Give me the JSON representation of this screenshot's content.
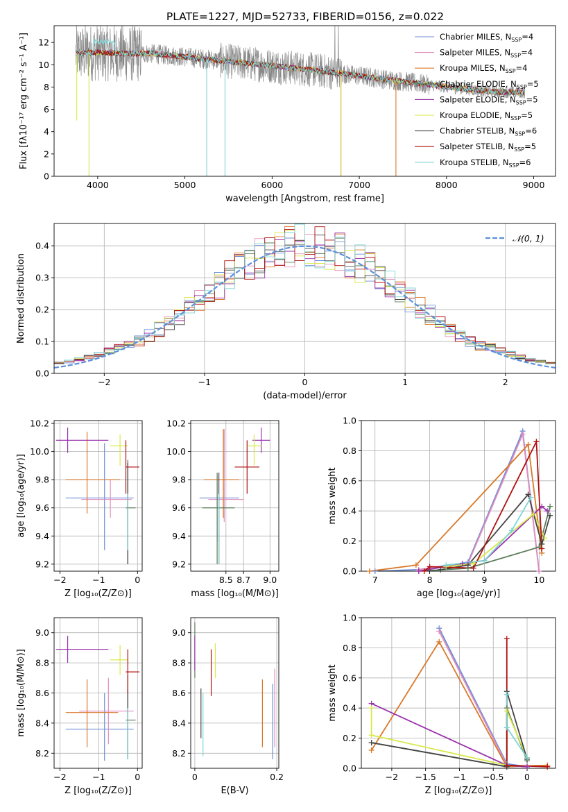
{
  "figure": {
    "title": "PLATE=1227, MJD=52733, FIBERID=0156, z=0.022"
  },
  "series_styles": [
    {
      "name": "Chabrier MILES",
      "nssp": "4",
      "color": "#6e8fd6"
    },
    {
      "name": "Salpeter MILES",
      "nssp": "4",
      "color": "#e38cbc"
    },
    {
      "name": "Kroupa MILES",
      "nssp": "4",
      "color": "#d9782a"
    },
    {
      "name": "Chabrier ELODIE",
      "nssp": "5",
      "color": "#5b7d5b"
    },
    {
      "name": "Salpeter ELODIE",
      "nssp": "5",
      "color": "#9933aa"
    },
    {
      "name": "Kroupa ELODIE",
      "nssp": "5",
      "color": "#d8e84a"
    },
    {
      "name": "Chabrier STELIB",
      "nssp": "6",
      "color": "#444444"
    },
    {
      "name": "Salpeter STELIB",
      "nssp": "5",
      "color": "#b01010"
    },
    {
      "name": "Kroupa STELIB",
      "nssp": "6",
      "color": "#7fd4d4"
    }
  ],
  "legend_nssp_label": "N",
  "legend_nssp_sub": "SSP",
  "chart_data": [
    {
      "id": "spectrum",
      "type": "line",
      "xlabel": "wavelength [Angstrom, rest frame]",
      "ylabel": "Flux [fλ10⁻¹⁷ erg cm⁻² s⁻¹ A⁻¹]",
      "xlim": [
        3500,
        9250
      ],
      "ylim": [
        0,
        13.5
      ],
      "xticks": [
        4000,
        5000,
        6000,
        7000,
        8000,
        9000
      ],
      "yticks": [
        0,
        2,
        4,
        6,
        8,
        10,
        12
      ],
      "legend": "top-right",
      "data_range": [
        3750,
        8900
      ],
      "data_color": "#888888",
      "continuum": [
        [
          3750,
          11.0
        ],
        [
          4000,
          11.1
        ],
        [
          4300,
          11.0
        ],
        [
          4600,
          11.0
        ],
        [
          5000,
          10.7
        ],
        [
          5500,
          10.3
        ],
        [
          6000,
          9.9
        ],
        [
          6500,
          9.5
        ],
        [
          7000,
          9.0
        ],
        [
          7500,
          8.5
        ],
        [
          8000,
          8.0
        ],
        [
          8500,
          7.6
        ],
        [
          8900,
          7.5
        ]
      ],
      "dips": [
        {
          "x": 3760,
          "y": 5.0
        },
        {
          "x": 3900,
          "y": 0.0
        },
        {
          "x": 5250,
          "y": 0.0
        },
        {
          "x": 5460,
          "y": 0.0
        },
        {
          "x": 6790,
          "y": 0.0
        },
        {
          "x": 7420,
          "y": 0.0
        }
      ]
    },
    {
      "id": "residuals",
      "type": "histogram",
      "xlabel": "(data-model)/error",
      "ylabel": "Normed distribution",
      "xlim": [
        -2.5,
        2.5
      ],
      "ylim": [
        0,
        0.47
      ],
      "xticks": [
        -2,
        -1,
        0,
        1,
        2
      ],
      "yticks": [
        0.0,
        0.1,
        0.2,
        0.3,
        0.4
      ],
      "grid": true,
      "legend": "top-right",
      "reference_curve": {
        "name": "𝒩(0, 1)",
        "mean": 0,
        "sigma": 1,
        "color": "#5b8fdc"
      },
      "bin_width": 0.1
    },
    {
      "id": "age_vs_Z",
      "type": "scatter",
      "xlabel": "Z [log₁₀(Z/Z⊙)]",
      "ylabel": "age  [log₁₀(age/yr)]",
      "xlim": [
        -2.15,
        0.12
      ],
      "ylim": [
        9.15,
        10.22
      ],
      "xticks": [
        -2,
        -1,
        0
      ],
      "yticks": [
        9.2,
        9.4,
        9.6,
        9.8,
        10.0,
        10.2
      ],
      "grid": true,
      "points": [
        {
          "s": 0,
          "x": -0.85,
          "y": 9.67,
          "xlo": -1.85,
          "xhi": -0.1,
          "ylo": 9.3,
          "yhi": 10.06
        },
        {
          "s": 1,
          "x": -0.7,
          "y": 9.66,
          "xlo": -1.45,
          "xhi": -0.15,
          "ylo": 9.53,
          "yhi": 9.8
        },
        {
          "s": 2,
          "x": -1.3,
          "y": 9.8,
          "xlo": -1.85,
          "xhi": -0.45,
          "ylo": 9.56,
          "yhi": 10.14
        },
        {
          "s": 3,
          "x": -0.25,
          "y": 9.6,
          "xlo": -0.3,
          "xhi": -0.05,
          "ylo": 9.2,
          "yhi": 9.94
        },
        {
          "s": 4,
          "x": -1.8,
          "y": 10.08,
          "xlo": -2.1,
          "xhi": -0.75,
          "ylo": 9.99,
          "yhi": 10.17
        },
        {
          "s": 5,
          "x": -0.45,
          "y": 10.04,
          "xlo": -0.7,
          "xhi": -0.25,
          "ylo": 9.9,
          "yhi": 10.12
        },
        {
          "s": 6,
          "x": -0.25,
          "y": 9.59,
          "xlo": -0.25,
          "xhi": -0.25,
          "ylo": 9.2,
          "yhi": 9.92
        },
        {
          "s": 7,
          "x": -0.3,
          "y": 9.89,
          "xlo": -0.3,
          "xhi": 0.05,
          "ylo": 9.7,
          "yhi": 10.08
        },
        {
          "s": 8,
          "x": -0.25,
          "y": 9.6,
          "xlo": -0.25,
          "xhi": -0.25,
          "ylo": 9.3,
          "yhi": 9.7
        }
      ]
    },
    {
      "id": "age_vs_mass",
      "type": "scatter",
      "xlabel": "mass [log₁₀(M/M⊙)]",
      "ylabel": "",
      "xlim": [
        8.1,
        9.1
      ],
      "ylim": [
        9.15,
        10.22
      ],
      "xticks": [
        8.5,
        8.7,
        9.0
      ],
      "xtick_labels": [
        "8.5",
        "8.7",
        "9.0"
      ],
      "yticks": [
        9.2,
        9.4,
        9.6,
        9.8,
        10.0,
        10.2
      ],
      "grid": true,
      "points": [
        {
          "s": 0,
          "x": 8.4,
          "y": 9.67,
          "xlo": 8.2,
          "xhi": 8.65,
          "ylo": 9.36,
          "yhi": 9.83
        },
        {
          "s": 1,
          "x": 8.48,
          "y": 9.66,
          "xlo": 8.3,
          "xhi": 8.7,
          "ylo": 9.5,
          "yhi": 10.16
        },
        {
          "s": 2,
          "x": 8.47,
          "y": 9.8,
          "xlo": 8.25,
          "xhi": 8.65,
          "ylo": 9.53,
          "yhi": 10.16
        },
        {
          "s": 3,
          "x": 8.4,
          "y": 9.6,
          "xlo": 8.23,
          "xhi": 8.6,
          "ylo": 9.2,
          "yhi": 9.85
        },
        {
          "s": 4,
          "x": 8.9,
          "y": 10.08,
          "xlo": 8.8,
          "xhi": 9.0,
          "ylo": 9.99,
          "yhi": 10.17
        },
        {
          "s": 5,
          "x": 8.82,
          "y": 10.04,
          "xlo": 8.75,
          "xhi": 8.9,
          "ylo": 9.9,
          "yhi": 10.12
        },
        {
          "s": 6,
          "x": 8.42,
          "y": 9.59,
          "xlo": 8.42,
          "xhi": 8.42,
          "ylo": 9.2,
          "yhi": 9.85
        },
        {
          "s": 7,
          "x": 8.74,
          "y": 9.89,
          "xlo": 8.6,
          "xhi": 8.88,
          "ylo": 9.7,
          "yhi": 10.08
        },
        {
          "s": 8,
          "x": 8.42,
          "y": 9.6,
          "xlo": 8.42,
          "xhi": 8.42,
          "ylo": 9.2,
          "yhi": 9.7
        }
      ]
    },
    {
      "id": "mass_weight_vs_age",
      "type": "line",
      "xlabel": "age  [log₁₀(age/yr)]",
      "ylabel": "mass weight",
      "xlim": [
        6.75,
        10.3
      ],
      "ylim": [
        0,
        1
      ],
      "xticks": [
        7,
        8,
        9,
        10
      ],
      "yticks": [
        0.0,
        0.2,
        0.4,
        0.6,
        0.8,
        1.0
      ],
      "grid": true,
      "series": [
        {
          "s": 0,
          "x": [
            7.0,
            7.8,
            8.7,
            9.7,
            10.0
          ],
          "y": [
            0.0,
            0.01,
            0.06,
            0.93,
            0.0
          ]
        },
        {
          "s": 1,
          "x": [
            7.8,
            8.7,
            9.7,
            10.0
          ],
          "y": [
            0.01,
            0.05,
            0.91,
            0.0
          ]
        },
        {
          "s": 2,
          "x": [
            6.9,
            7.75,
            9.8,
            10.05
          ],
          "y": [
            0.0,
            0.04,
            0.84,
            0.12
          ]
        },
        {
          "s": 3,
          "x": [
            7.8,
            8.7,
            10.0,
            10.2
          ],
          "y": [
            0.0,
            0.02,
            0.16,
            0.43
          ]
        },
        {
          "s": 4,
          "x": [
            7.8,
            8.6,
            9.0,
            10.05,
            10.15
          ],
          "y": [
            0.0,
            0.05,
            0.07,
            0.43,
            0.4
          ]
        },
        {
          "s": 5,
          "x": [
            8.3,
            8.8,
            9.9,
            10.1
          ],
          "y": [
            0.03,
            0.05,
            0.38,
            0.22
          ]
        },
        {
          "s": 6,
          "x": [
            8.2,
            8.7,
            9.8,
            10.05,
            10.2
          ],
          "y": [
            0.01,
            0.04,
            0.51,
            0.18,
            0.37
          ]
        },
        {
          "s": 7,
          "x": [
            7.9,
            8.0,
            8.8,
            9.95,
            10.05
          ],
          "y": [
            0.0,
            0.03,
            0.02,
            0.86,
            0.15
          ]
        },
        {
          "s": 8,
          "x": [
            8.3,
            9.0,
            9.5,
            9.85
          ],
          "y": [
            0.04,
            0.07,
            0.27,
            0.49
          ]
        }
      ]
    },
    {
      "id": "mass_vs_Z",
      "type": "scatter",
      "xlabel": "Z [log₁₀(Z/Z⊙)]",
      "ylabel": "mass [log₁₀(M/M⊙)]",
      "xlim": [
        -2.15,
        0.12
      ],
      "ylim": [
        8.1,
        9.1
      ],
      "xticks": [
        -2,
        -1,
        0
      ],
      "yticks": [
        8.2,
        8.4,
        8.6,
        8.8,
        9.0
      ],
      "grid": true,
      "points": [
        {
          "s": 0,
          "x": -0.85,
          "y": 8.36,
          "xlo": -1.85,
          "xhi": -0.1,
          "ylo": 8.15,
          "yhi": 8.6
        },
        {
          "s": 1,
          "x": -0.75,
          "y": 8.48,
          "xlo": -1.5,
          "xhi": -0.1,
          "ylo": 8.26,
          "yhi": 8.7
        },
        {
          "s": 2,
          "x": -1.3,
          "y": 8.47,
          "xlo": -1.85,
          "xhi": -0.5,
          "ylo": 8.24,
          "yhi": 8.69
        },
        {
          "s": 3,
          "x": -0.25,
          "y": 8.42,
          "xlo": -0.3,
          "xhi": -0.05,
          "ylo": 8.16,
          "yhi": 8.72
        },
        {
          "s": 4,
          "x": -1.8,
          "y": 8.89,
          "xlo": -2.1,
          "xhi": -0.75,
          "ylo": 8.8,
          "yhi": 8.98
        },
        {
          "s": 5,
          "x": -0.45,
          "y": 8.82,
          "xlo": -0.7,
          "xhi": -0.25,
          "ylo": 8.72,
          "yhi": 8.92
        },
        {
          "s": 6,
          "x": -0.25,
          "y": 8.42,
          "xlo": -0.25,
          "xhi": -0.25,
          "ylo": 8.16,
          "yhi": 8.62
        },
        {
          "s": 7,
          "x": -0.25,
          "y": 8.74,
          "xlo": -0.3,
          "xhi": 0.05,
          "ylo": 8.6,
          "yhi": 8.89
        },
        {
          "s": 8,
          "x": -0.25,
          "y": 8.42,
          "xlo": -0.25,
          "xhi": -0.25,
          "ylo": 8.16,
          "yhi": 8.5
        }
      ]
    },
    {
      "id": "mass_vs_ebv",
      "type": "scatter",
      "xlabel": "E(B-V)",
      "ylabel": "",
      "xlim": [
        -0.01,
        0.205
      ],
      "ylim": [
        8.1,
        9.1
      ],
      "xticks": [
        0.0,
        0.2
      ],
      "yticks": [
        8.2,
        8.4,
        8.6,
        8.8,
        9.0
      ],
      "grid": true,
      "points": [
        {
          "s": 0,
          "x": 0.19,
          "y": 8.42,
          "xlo": 0.19,
          "xhi": 0.19,
          "ylo": 8.16,
          "yhi": 8.66
        },
        {
          "s": 1,
          "x": 0.195,
          "y": 8.5,
          "xlo": 0.195,
          "xhi": 0.195,
          "ylo": 8.24,
          "yhi": 8.76
        },
        {
          "s": 2,
          "x": 0.165,
          "y": 8.47,
          "xlo": 0.165,
          "xhi": 0.165,
          "ylo": 8.24,
          "yhi": 8.69
        },
        {
          "s": 3,
          "x": 0.0,
          "y": 8.9,
          "xlo": 0.0,
          "xhi": 0.0,
          "ylo": 8.7,
          "yhi": 9.07
        },
        {
          "s": 4,
          "x": 0.0,
          "y": 8.85,
          "xlo": 0.0,
          "xhi": 0.0,
          "ylo": 8.75,
          "yhi": 8.98
        },
        {
          "s": 5,
          "x": 0.05,
          "y": 8.82,
          "xlo": 0.05,
          "xhi": 0.05,
          "ylo": 8.7,
          "yhi": 8.93
        },
        {
          "s": 6,
          "x": 0.015,
          "y": 8.45,
          "xlo": 0.015,
          "xhi": 0.015,
          "ylo": 8.3,
          "yhi": 8.63
        },
        {
          "s": 7,
          "x": 0.04,
          "y": 8.74,
          "xlo": 0.04,
          "xhi": 0.04,
          "ylo": 8.58,
          "yhi": 8.89
        },
        {
          "s": 8,
          "x": 0.02,
          "y": 8.4,
          "xlo": 0.02,
          "xhi": 0.02,
          "ylo": 8.18,
          "yhi": 8.6
        }
      ]
    },
    {
      "id": "mass_weight_vs_Z",
      "type": "line",
      "xlabel": "Z [log₁₀(Z/Z⊙)]",
      "ylabel": "mass weight",
      "xlim": [
        -2.45,
        0.42
      ],
      "ylim": [
        0,
        1
      ],
      "xticks": [
        -2.0,
        -1.5,
        -1.0,
        -0.5,
        0.0
      ],
      "yticks": [
        0.0,
        0.2,
        0.4,
        0.6,
        0.8,
        1.0
      ],
      "grid": true,
      "series": [
        {
          "s": 0,
          "x": [
            -1.3,
            -0.3,
            0.0
          ],
          "y": [
            0.93,
            0.03,
            0.01
          ]
        },
        {
          "s": 1,
          "x": [
            -1.3,
            -0.3,
            0.0
          ],
          "y": [
            0.91,
            0.02,
            0.01
          ]
        },
        {
          "s": 2,
          "x": [
            -2.3,
            -1.3,
            -0.3,
            0.3
          ],
          "y": [
            0.12,
            0.84,
            0.01,
            0.02
          ]
        },
        {
          "s": 3,
          "x": [
            -2.3,
            -0.3,
            -0.3,
            0.0
          ],
          "y": [
            0.17,
            0.01,
            0.4,
            0.05
          ]
        },
        {
          "s": 4,
          "x": [
            -2.3,
            -0.3,
            0.0
          ],
          "y": [
            0.43,
            0.02,
            0.01
          ]
        },
        {
          "s": 5,
          "x": [
            -2.3,
            -2.3,
            -0.3,
            -0.3,
            0.0
          ],
          "y": [
            0.4,
            0.22,
            0.02,
            0.38,
            0.07
          ]
        },
        {
          "s": 6,
          "x": [
            -2.3,
            -0.3,
            -0.3,
            0.0
          ],
          "y": [
            0.17,
            0.01,
            0.51,
            0.06
          ]
        },
        {
          "s": 7,
          "x": [
            -0.3,
            -0.3,
            0.3
          ],
          "y": [
            0.86,
            0.02,
            0.01
          ]
        },
        {
          "s": 8,
          "x": [
            -0.3,
            -0.3,
            0.0
          ],
          "y": [
            0.49,
            0.27,
            0.07
          ]
        }
      ]
    }
  ]
}
